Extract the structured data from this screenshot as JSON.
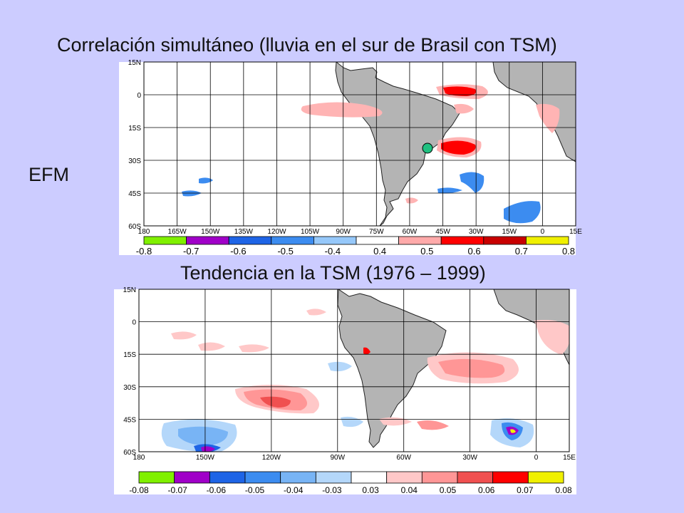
{
  "titles": {
    "top": "Correlación simultáneo (lluvia en el sur de Brasil con TSM)",
    "season": "EFM",
    "bottom": "Tendencia en la TSM (1976 – 1999)"
  },
  "top_map": {
    "lat_labels": [
      "15N",
      "0",
      "15S",
      "30S",
      "45S",
      "60S"
    ],
    "lon_labels": [
      "180",
      "165W",
      "150W",
      "135W",
      "120W",
      "105W",
      "90W",
      "75W",
      "60W",
      "45W",
      "30W",
      "15W",
      "0",
      "15E"
    ],
    "colorbar": {
      "tick_labels": [
        "-0.8",
        "-0.7",
        "-0.6",
        "-0.5",
        "-0.4",
        "0.4",
        "0.5",
        "0.6",
        "0.7",
        "0.8"
      ],
      "colors": [
        "#80f000",
        "#a000c8",
        "#1e64e6",
        "#3c8cf0",
        "#96c8fa",
        "#ffffff",
        "#ffaaaa",
        "#ff0000",
        "#c80000",
        "#f0f000"
      ]
    }
  },
  "bottom_map": {
    "lat_labels": [
      "15N",
      "0",
      "15S",
      "30S",
      "45S",
      "60S"
    ],
    "lon_labels": [
      "180",
      "150W",
      "120W",
      "90W",
      "60W",
      "30W",
      "0",
      "15E"
    ],
    "colorbar": {
      "tick_labels": [
        "-0.08",
        "-0.07",
        "-0.06",
        "-0.05",
        "-0.04",
        "-0.03",
        "0.03",
        "0.04",
        "0.05",
        "0.06",
        "0.07",
        "0.08"
      ],
      "colors": [
        "#80f000",
        "#a000c8",
        "#1e64e6",
        "#3c8cf0",
        "#78b4f5",
        "#b4d7fa",
        "#ffffff",
        "#ffc8c8",
        "#ff9696",
        "#f05050",
        "#ff0000",
        "#f0f000"
      ]
    }
  },
  "colors": {
    "background": "#ccccff",
    "land": "#b4b4b4",
    "marker": "#20c080"
  }
}
